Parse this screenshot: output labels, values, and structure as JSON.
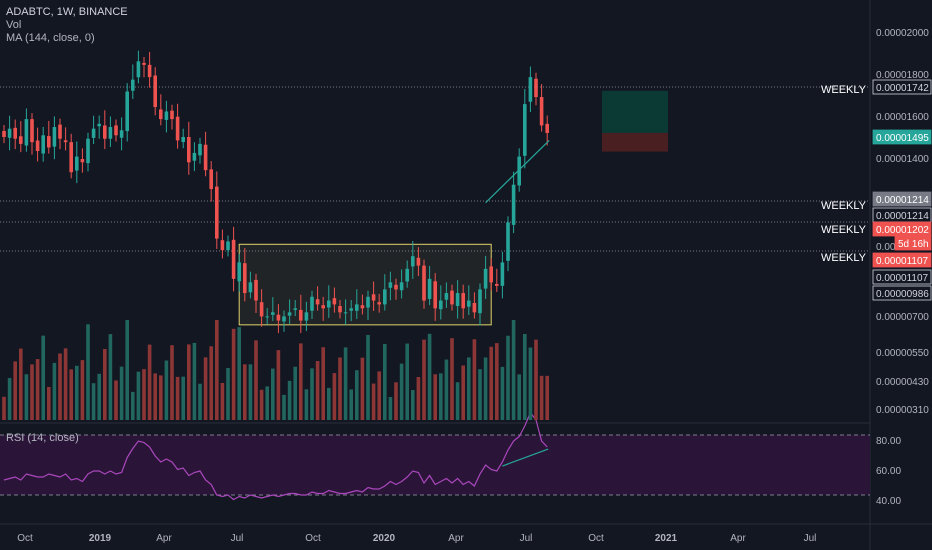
{
  "header": {
    "symbol_line": "ADABTC, 1W, BINANCE",
    "volume_label": "Vol",
    "ma_label": "MA (144, close, 0)",
    "rsi_label": "RSI (14, close)"
  },
  "colors": {
    "background": "#131722",
    "up": "#26a69a",
    "down": "#ef5350",
    "vol_up": "#22675f",
    "vol_down": "#8d3636",
    "rsi_line": "#ab47bc",
    "rsi_band": "#2a1539",
    "range_box": "#e0d26a",
    "target_zone": "#0b3a35",
    "stop_zone": "#4a1f22",
    "trendline": "#26a69a"
  },
  "price_axis": {
    "ticks": [
      "0.00002000",
      "0.00001800",
      "0.00001600",
      "0.00001400",
      "0.00000700",
      "0.00000550",
      "0.00000430",
      "0.00000310"
    ]
  },
  "price_tags": [
    {
      "text": "0.00001742",
      "style": "outline"
    },
    {
      "text": "0.00001495",
      "style": "green"
    },
    {
      "text": "0.00001214",
      "style": "gray"
    },
    {
      "text": "0.00001214",
      "style": "outline"
    },
    {
      "text": "0.00001202",
      "style": "red"
    },
    {
      "text": "5d 16h",
      "style": "red"
    },
    {
      "text": "0.00001107",
      "style": "red"
    },
    {
      "text": "0.00001107",
      "style": "outline"
    },
    {
      "text": "0.00000986",
      "style": "outline"
    }
  ],
  "level_labels": [
    "WEEKLY",
    "WEEKLY",
    "WEEKLY",
    "WEEKLY"
  ],
  "partial_tick": "0.00",
  "rsi_axis": {
    "ticks": [
      "80.00",
      "60.00",
      "40.00"
    ]
  },
  "time_axis": {
    "labels": [
      "Oct",
      "2019",
      "Apr",
      "Jul",
      "Oct",
      "2020",
      "Apr",
      "Jul",
      "Oct",
      "2021",
      "Apr",
      "Jul"
    ]
  },
  "chart_data": {
    "type": "candlestick",
    "price_series": {
      "name": "ADABTC",
      "timeframe": "1W",
      "close": [
        1190,
        1240,
        1180,
        1150,
        1300,
        1160,
        1110,
        1200,
        1130,
        1250,
        1180,
        1160,
        1000,
        1080,
        1050,
        1180,
        1240,
        1270,
        1180,
        1250,
        1200,
        1230,
        1490,
        1580,
        1730,
        1700,
        1600,
        1380,
        1300,
        1350,
        1300,
        1170,
        1190,
        1050,
        1100,
        1150,
        1010,
        920,
        720,
        680,
        710,
        590,
        640,
        550,
        580,
        530,
        490,
        490,
        500,
        480,
        490,
        500,
        510,
        480,
        500,
        540,
        520,
        510,
        530,
        520,
        500,
        500,
        510,
        520,
        510,
        540,
        530,
        520,
        560,
        580,
        560,
        580,
        620,
        660,
        630,
        530,
        590,
        510,
        530,
        550,
        520,
        550,
        510,
        530,
        500,
        560,
        620,
        580,
        570,
        640,
        780,
        940,
        1080,
        1400,
        1600,
        1450,
        1260,
        1214
      ],
      "y_range": [
        290,
        2100
      ],
      "scale": "log",
      "levels": [
        1742,
        1214,
        1107
      ],
      "range_box_price": [
        470,
        700
      ],
      "position": {
        "entry": 1214,
        "target": 1495,
        "stop": 1107
      }
    },
    "volume_series": {
      "name": "Vol"
    },
    "moving_average": {
      "name": "MA (144, close, 0)"
    },
    "rsi": {
      "name": "RSI (14, close)",
      "ylim": [
        25,
        95
      ],
      "bands": [
        70,
        30
      ],
      "values": [
        40,
        41,
        42,
        40,
        44,
        43,
        42,
        42,
        44,
        43,
        42,
        44,
        40,
        41,
        39,
        44,
        46,
        46,
        44,
        46,
        44,
        45,
        55,
        61,
        66,
        65,
        62,
        56,
        52,
        54,
        52,
        47,
        48,
        43,
        45,
        46,
        40,
        37,
        30,
        29,
        30,
        27,
        29,
        28,
        30,
        29,
        28,
        29,
        30,
        29,
        30,
        31,
        31,
        30,
        30,
        32,
        31,
        31,
        33,
        32,
        31,
        31,
        32,
        33,
        32,
        35,
        34,
        34,
        36,
        39,
        37,
        39,
        42,
        46,
        45,
        38,
        43,
        37,
        39,
        41,
        38,
        41,
        37,
        39,
        36,
        44,
        50,
        47,
        46,
        52,
        60,
        66,
        69,
        76,
        85,
        80,
        66,
        62
      ]
    }
  }
}
